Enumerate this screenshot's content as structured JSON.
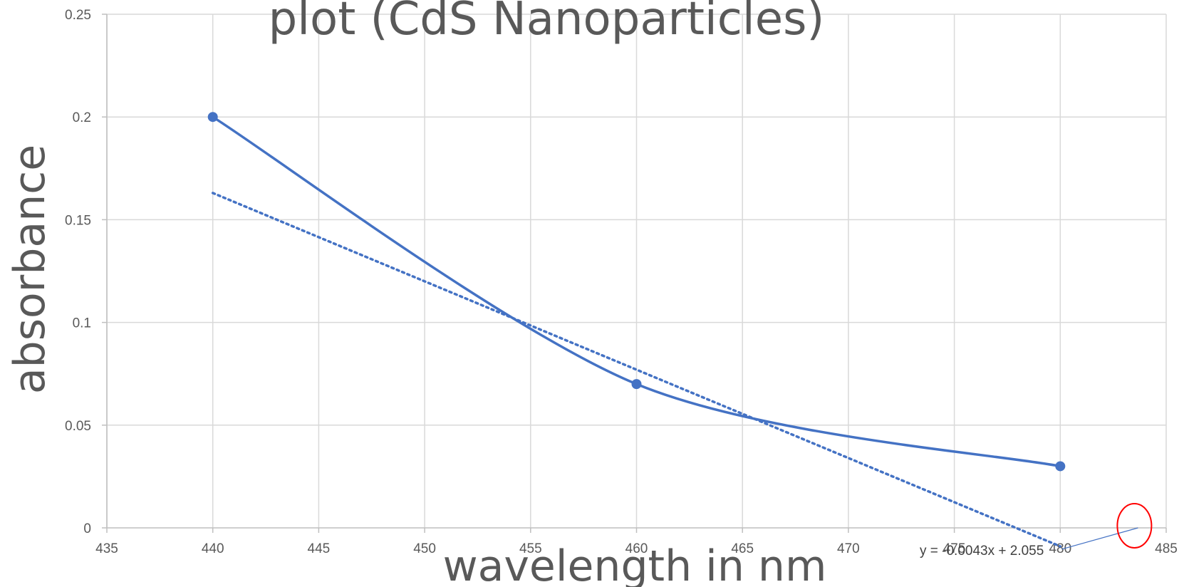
{
  "chart_data": {
    "type": "scatter",
    "title": "plot (CdS Nanoparticles)",
    "xlabel": "wavelength in nm",
    "ylabel": "absorbance",
    "xlim": [
      435,
      485
    ],
    "ylim": [
      0,
      0.25
    ],
    "x_ticks": [
      "435",
      "440",
      "445",
      "450",
      "455",
      "460",
      "465",
      "470",
      "475",
      "480",
      "485"
    ],
    "y_ticks": [
      "0",
      "0.05",
      "0.1",
      "0.15",
      "0.2",
      "0.25"
    ],
    "grid": true,
    "series": [
      {
        "x": [
          440,
          460,
          480
        ],
        "y": [
          0.2,
          0.07,
          0.03
        ],
        "smooth": true,
        "markers": true,
        "color": "#4472C4"
      }
    ],
    "trendline": {
      "type": "linear",
      "style": "dotted",
      "color": "#4472C4",
      "slope": -0.0043,
      "intercept": 2.055,
      "x_range": [
        440,
        480
      ],
      "equation": "y = -0.0043x + 2.055"
    },
    "annotation": {
      "shape": "ellipse",
      "color": "#FF0000",
      "x": 483.5,
      "y": 0
    }
  }
}
